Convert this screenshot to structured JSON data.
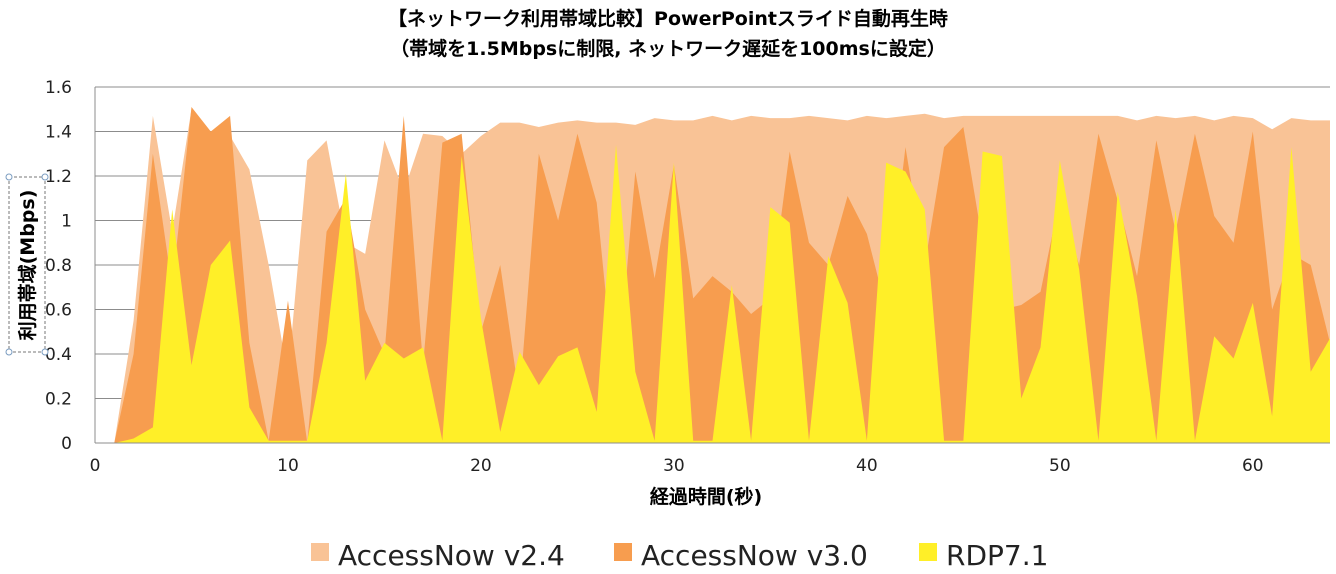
{
  "chart_data": {
    "type": "area",
    "title": "【ネットワーク利用帯域比較】PowerPointスライド自動再生時",
    "subtitle": "（帯域を1.5Mbpsに制限, ネットワーク遅延を100msに設定）",
    "xlabel": "経過時間(秒)",
    "ylabel": "利用帯域(Mbps)",
    "xlim": [
      0,
      64
    ],
    "ylim": [
      0,
      1.6
    ],
    "xticks": [
      0,
      10,
      20,
      30,
      40,
      50,
      60
    ],
    "yticks": [
      0,
      0.2,
      0.4,
      0.6,
      0.8,
      1,
      1.2,
      1.4,
      1.6
    ],
    "grid": true,
    "legend": "bottom",
    "x": [
      1,
      2,
      3,
      4,
      5,
      6,
      7,
      8,
      9,
      10,
      11,
      12,
      13,
      14,
      15,
      16,
      17,
      18,
      19,
      20,
      21,
      22,
      23,
      24,
      25,
      26,
      27,
      28,
      29,
      30,
      31,
      32,
      33,
      34,
      35,
      36,
      37,
      38,
      39,
      40,
      41,
      42,
      43,
      44,
      45,
      46,
      47,
      48,
      49,
      50,
      51,
      52,
      53,
      54,
      55,
      56,
      57,
      58,
      59,
      60,
      61,
      62,
      63,
      64
    ],
    "series": [
      {
        "name": "AccessNow v2.4",
        "color": "#f9c396",
        "values": [
          0,
          0.55,
          1.47,
          0.95,
          1.5,
          1.38,
          1.38,
          1.23,
          0.8,
          0.3,
          1.27,
          1.36,
          0.9,
          0.85,
          1.36,
          1.13,
          1.39,
          1.38,
          1.3,
          1.38,
          1.44,
          1.44,
          1.42,
          1.44,
          1.45,
          1.44,
          1.44,
          1.43,
          1.46,
          1.45,
          1.45,
          1.47,
          1.45,
          1.47,
          1.46,
          1.46,
          1.47,
          1.46,
          1.45,
          1.47,
          1.46,
          1.47,
          1.48,
          1.46,
          1.47,
          1.47,
          1.47,
          1.47,
          1.47,
          1.47,
          1.47,
          1.47,
          1.47,
          1.45,
          1.47,
          1.46,
          1.47,
          1.45,
          1.47,
          1.46,
          1.41,
          1.46,
          1.45,
          1.45
        ]
      },
      {
        "name": "AccessNow v3.0",
        "color": "#f79d4f",
        "values": [
          0,
          0.4,
          1.3,
          0.7,
          1.51,
          1.4,
          1.47,
          0.45,
          0.01,
          0.64,
          0.0,
          0.95,
          1.1,
          0.6,
          0.4,
          1.47,
          0.35,
          1.35,
          1.39,
          0.5,
          0.8,
          0.2,
          1.3,
          1.0,
          1.39,
          1.08,
          0.2,
          1.22,
          0.74,
          1.25,
          0.65,
          0.75,
          0.68,
          0.58,
          0.65,
          1.31,
          0.9,
          0.8,
          1.11,
          0.94,
          0.6,
          1.33,
          0.8,
          1.33,
          1.42,
          0.9,
          0.6,
          0.62,
          0.68,
          1.1,
          0.8,
          1.39,
          1.09,
          0.75,
          1.36,
          0.95,
          1.39,
          1.02,
          0.9,
          1.4,
          0.6,
          0.85,
          0.8,
          0.45
        ]
      },
      {
        "name": "RDP7.1",
        "color": "#ffef28",
        "values": [
          0,
          0.02,
          0.07,
          1.05,
          0.35,
          0.8,
          0.91,
          0.16,
          0.01,
          0.01,
          0.01,
          0.45,
          1.21,
          0.28,
          0.45,
          0.38,
          0.43,
          0.01,
          1.29,
          0.56,
          0.05,
          0.41,
          0.26,
          0.39,
          0.43,
          0.14,
          1.34,
          0.32,
          0.01,
          1.26,
          0.01,
          0.01,
          0.71,
          0.01,
          1.06,
          0.99,
          0.01,
          0.84,
          0.63,
          0.01,
          1.26,
          1.22,
          1.05,
          0.01,
          0.01,
          1.31,
          1.29,
          0.2,
          0.43,
          1.27,
          0.78,
          0.01,
          1.13,
          0.66,
          0.01,
          1.05,
          0.01,
          0.48,
          0.38,
          0.63,
          0.12,
          1.33,
          0.32,
          0.47
        ]
      }
    ]
  }
}
